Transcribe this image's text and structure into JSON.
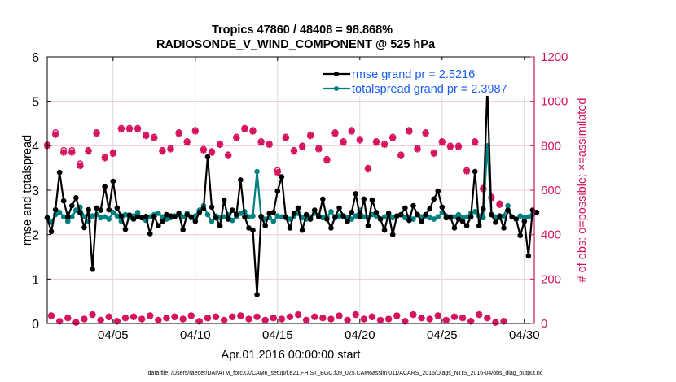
{
  "chart_data": {
    "type": "line",
    "title": "Tropics 47860 / 48408 = 98.868%",
    "subtitle": "RADIOSONDE_V_WIND_COMPONENT @ 525 hPa",
    "xlabel": "Apr.01,2016 00:00:00 start",
    "ylabel": "rmse and totalspread",
    "y2label": "# of obs: o=possible; ×=assimilated",
    "footer": "data file: /Users/raeder/DAI/ATM_forcXX/CAM6_setup/f.e21.FHIST_BGC.f09_025.CAM6assim.011/ACARS_2016/Diags_NTrS_2016-04/obs_diag_output.nc",
    "xlim_days": [
      0,
      30
    ],
    "x_step_days": 0.25,
    "xticks": [
      {
        "day": 4,
        "label": "04/05"
      },
      {
        "day": 9,
        "label": "04/10"
      },
      {
        "day": 14,
        "label": "04/15"
      },
      {
        "day": 19,
        "label": "04/20"
      },
      {
        "day": 24,
        "label": "04/25"
      },
      {
        "day": 29,
        "label": "04/30"
      }
    ],
    "ylim": [
      0,
      6
    ],
    "yticks": [
      0,
      1,
      2,
      3,
      4,
      5,
      6
    ],
    "y2lim": [
      0,
      1200
    ],
    "y2ticks": [
      0,
      200,
      400,
      600,
      800,
      1000,
      1200
    ],
    "grid": true,
    "legend_position": "top-right",
    "colors": {
      "rmse": "#000000",
      "spread": "#008080",
      "obs": "#d6135e",
      "legend_text": "#1a5ef0",
      "grid": "#f2c9d6",
      "vgrid": "#d9d9d9"
    },
    "series": [
      {
        "name": "rmse grand pr = 2.5216",
        "key": "rmse",
        "values": [
          2.38,
          2.07,
          2.56,
          3.4,
          2.76,
          2.4,
          2.65,
          2.83,
          2.49,
          2.16,
          2.56,
          1.22,
          2.6,
          2.55,
          3.08,
          2.56,
          3.2,
          2.6,
          2.42,
          2.12,
          2.44,
          2.35,
          2.4,
          2.38,
          2.41,
          2.02,
          2.41,
          2.2,
          2.3,
          2.45,
          2.42,
          2.4,
          2.48,
          2.11,
          2.45,
          2.4,
          2.3,
          2.5,
          2.58,
          3.75,
          2.62,
          2.38,
          2.2,
          2.78,
          2.35,
          2.55,
          2.45,
          3.23,
          2.4,
          2.15,
          2.1,
          0.65,
          2.41,
          2.2,
          2.48,
          2.5,
          2.98,
          3.3,
          2.4,
          2.15,
          2.48,
          2.6,
          2.1,
          2.45,
          2.35,
          2.55,
          2.4,
          2.8,
          2.35,
          2.15,
          2.4,
          2.6,
          2.42,
          2.3,
          2.5,
          2.92,
          2.4,
          2.8,
          2.2,
          2.78,
          2.5,
          2.35,
          2.1,
          2.48,
          2.0,
          2.42,
          2.45,
          2.6,
          2.32,
          2.65,
          2.45,
          2.3,
          2.45,
          2.58,
          2.8,
          2.98,
          2.62,
          2.38,
          2.4,
          2.15,
          2.35,
          2.3,
          2.2,
          2.4,
          3.42,
          2.2,
          2.58,
          5.3,
          2.45,
          2.28,
          2.42,
          2.15,
          2.55,
          2.4,
          2.35,
          1.98,
          2.3,
          1.52,
          2.55,
          2.5
        ]
      },
      {
        "name": "totalspread grand pr = 2.3987",
        "key": "spread",
        "values": [
          2.38,
          2.28,
          2.45,
          2.5,
          2.4,
          2.3,
          2.4,
          2.55,
          2.62,
          2.4,
          2.3,
          2.42,
          2.45,
          2.38,
          2.4,
          2.35,
          2.5,
          2.42,
          2.3,
          2.45,
          2.38,
          2.42,
          2.5,
          2.38,
          2.32,
          2.4,
          2.45,
          2.48,
          2.4,
          2.35,
          2.38,
          2.42,
          2.45,
          2.4,
          2.48,
          2.38,
          2.42,
          2.55,
          2.65,
          2.45,
          2.3,
          2.42,
          2.38,
          2.4,
          2.45,
          2.32,
          2.4,
          2.48,
          2.52,
          2.4,
          2.42,
          3.42,
          2.4,
          2.35,
          2.38,
          2.3,
          2.42,
          2.4,
          2.38,
          2.35,
          2.42,
          2.48,
          2.38,
          2.35,
          2.4,
          2.48,
          2.42,
          2.38,
          2.4,
          2.52,
          2.38,
          2.42,
          2.4,
          2.38,
          2.35,
          2.42,
          2.55,
          2.4,
          2.38,
          2.45,
          2.42,
          2.35,
          2.4,
          2.48,
          2.38,
          2.42,
          2.45,
          2.38,
          2.4,
          2.35,
          2.45,
          2.4,
          2.42,
          2.38,
          2.35,
          2.4,
          2.5,
          2.42,
          2.38,
          2.4,
          2.45,
          2.38,
          2.4,
          2.48,
          2.52,
          2.42,
          2.38,
          4.0,
          2.45,
          2.4,
          2.38,
          2.42,
          2.65,
          2.4,
          2.35,
          2.42,
          2.38,
          2.4,
          2.45,
          2.5
        ]
      },
      {
        "name": "obs possible",
        "key": "obs_possible",
        "values": [
          805,
          35,
          860,
          10,
          780,
          25,
          780,
          5,
          720,
          20,
          780,
          40,
          860,
          15,
          750,
          30,
          770,
          10,
          880,
          25,
          880,
          30,
          880,
          20,
          850,
          35,
          840,
          15,
          780,
          25,
          790,
          30,
          860,
          20,
          820,
          35,
          870,
          10,
          785,
          25,
          775,
          30,
          810,
          15,
          760,
          30,
          840,
          35,
          880,
          20,
          870,
          30,
          820,
          15,
          810,
          25,
          690,
          20,
          840,
          30,
          780,
          40,
          800,
          15,
          850,
          30,
          790,
          25,
          740,
          20,
          860,
          35,
          820,
          15,
          870,
          40,
          830,
          20,
          700,
          30,
          820,
          15,
          810,
          20,
          840,
          35,
          760,
          10,
          870,
          40,
          790,
          25,
          860,
          20,
          770,
          35,
          820,
          15,
          800,
          30,
          800,
          25,
          690,
          10,
          820,
          40,
          610,
          25,
          570,
          5,
          540,
          10
        ]
      },
      {
        "name": "obs assimilated",
        "key": "obs_assim",
        "values": [
          800,
          35,
          850,
          10,
          770,
          25,
          770,
          5,
          710,
          20,
          775,
          40,
          855,
          15,
          745,
          30,
          765,
          10,
          875,
          25,
          875,
          30,
          875,
          20,
          845,
          35,
          835,
          15,
          775,
          25,
          785,
          30,
          855,
          20,
          815,
          35,
          865,
          10,
          780,
          25,
          770,
          30,
          805,
          15,
          755,
          30,
          835,
          35,
          875,
          20,
          865,
          30,
          815,
          15,
          805,
          25,
          680,
          20,
          835,
          30,
          775,
          40,
          795,
          15,
          845,
          30,
          785,
          25,
          735,
          20,
          855,
          35,
          815,
          15,
          865,
          40,
          825,
          20,
          695,
          30,
          815,
          15,
          805,
          20,
          835,
          35,
          755,
          10,
          865,
          40,
          785,
          25,
          855,
          20,
          765,
          35,
          815,
          15,
          795,
          30,
          795,
          25,
          685,
          10,
          815,
          40,
          605,
          25,
          565,
          5,
          535,
          10
        ]
      }
    ]
  }
}
